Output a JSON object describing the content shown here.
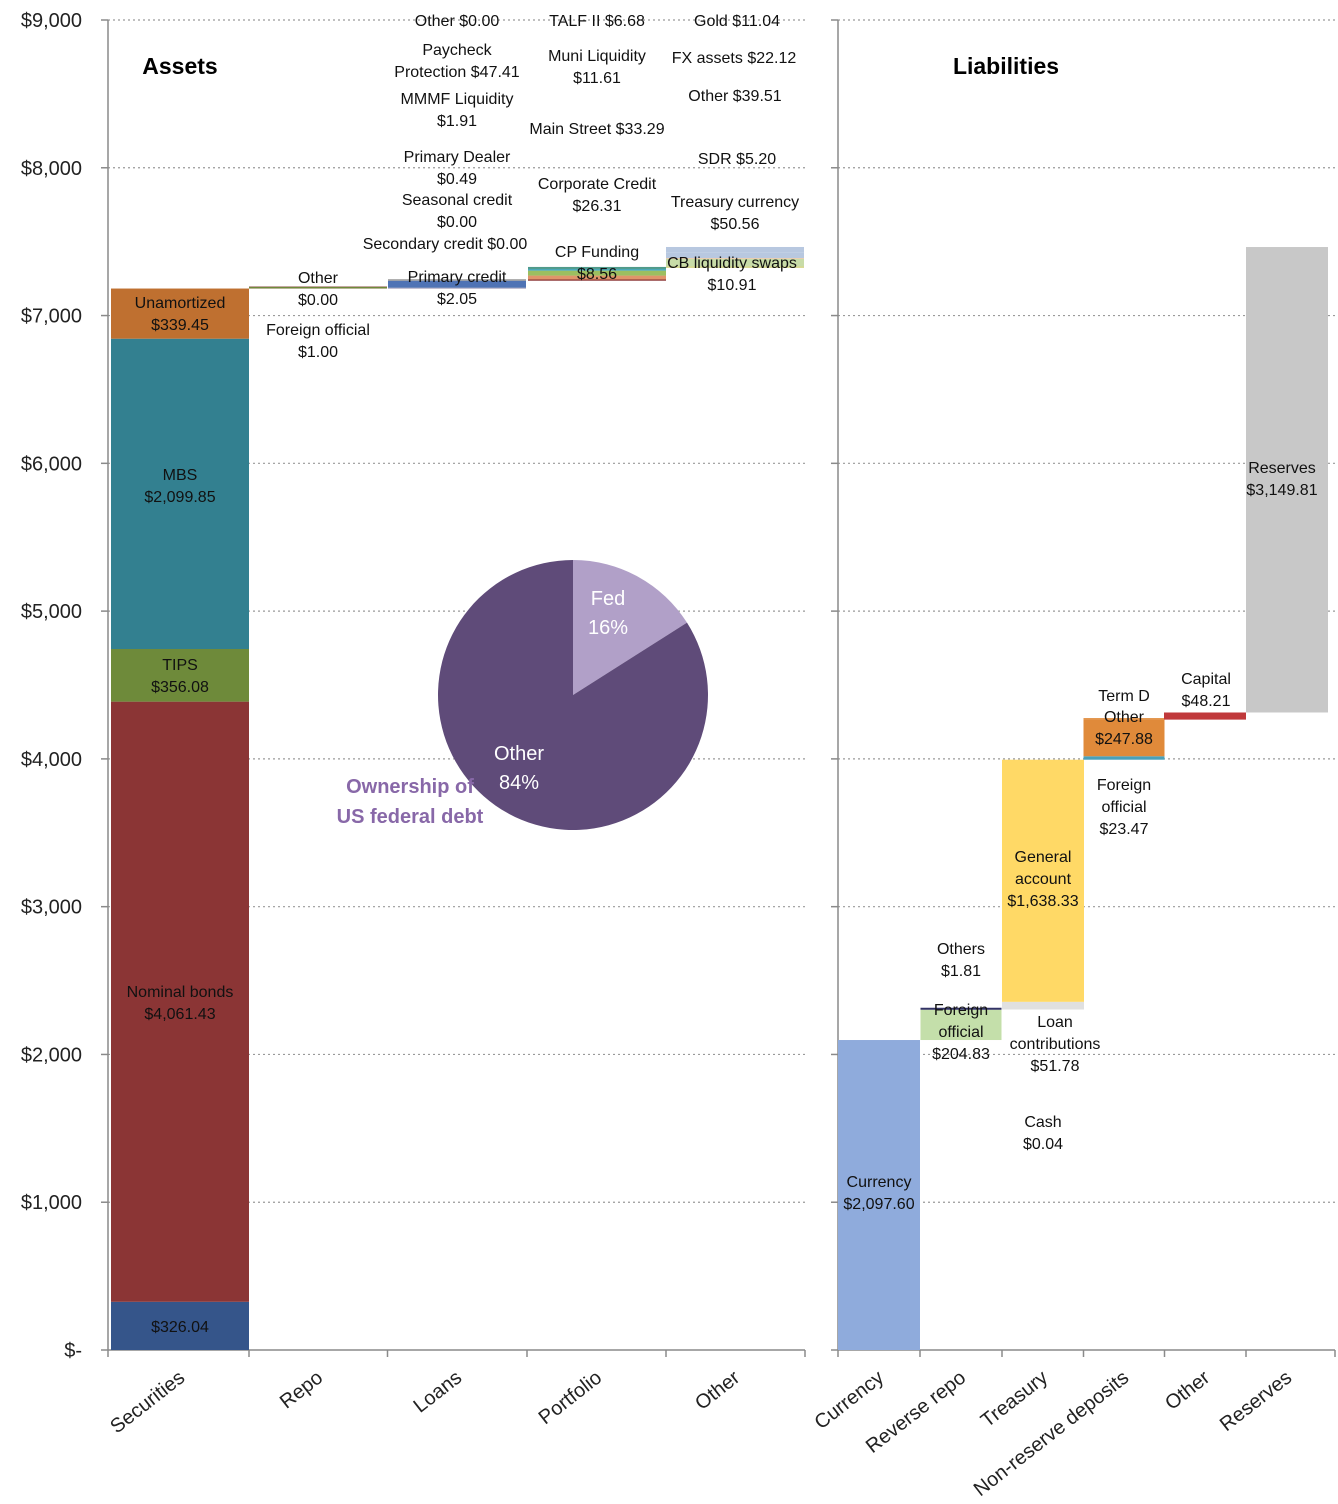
{
  "chart_data": [
    {
      "type": "bar",
      "title": "Assets",
      "ylim": [
        0,
        9000
      ],
      "yticks": [
        0,
        1000,
        2000,
        3000,
        4000,
        5000,
        6000,
        7000,
        8000,
        9000
      ],
      "ytick_labels": [
        "$-",
        "$1,000",
        "$2,000",
        "$3,000",
        "$4,000",
        "$5,000",
        "$6,000",
        "$7,000",
        "$8,000",
        "$9,000"
      ],
      "grid": true,
      "categories": [
        "Securities",
        "Repo",
        "Loans",
        "Portfolio",
        "Other"
      ],
      "segments": [
        {
          "category": "Securities",
          "base": 0,
          "value": 326.04,
          "color": "#35558a",
          "label": "$326.04"
        },
        {
          "category": "Securities",
          "base": 326.04,
          "value": 4061.43,
          "color": "#8b3535",
          "label": "Nominal bonds\n$4,061.43"
        },
        {
          "category": "Securities",
          "base": 4387.47,
          "value": 356.08,
          "color": "#6e8a3a",
          "label": "TIPS\n$356.08"
        },
        {
          "category": "Securities",
          "base": 4743.55,
          "value": 2099.85,
          "color": "#338090",
          "label": "MBS\n$2,099.85"
        },
        {
          "category": "Securities",
          "base": 6843.4,
          "value": 339.45,
          "color": "#bf7030",
          "label": "Unamortized\n$339.45"
        },
        {
          "category": "Repo",
          "base": 7182.85,
          "value": 1.0,
          "color": "#8b3535",
          "label": "Foreign official\n$1.00"
        },
        {
          "category": "Repo",
          "base": 7183.85,
          "value": 0.0,
          "color": "#6e8a3a",
          "label": "Other\n$0.00"
        },
        {
          "category": "Loans",
          "base": 7183.85,
          "value": 2.05,
          "color": "#5b4f95",
          "label": "Primary credit\n$2.05"
        },
        {
          "category": "Loans",
          "base": 7185.9,
          "value": 0.0,
          "color": "#9a9a9a",
          "label": "Secondary credit $0.00"
        },
        {
          "category": "Loans",
          "base": 7185.9,
          "value": 0.0,
          "color": "#9a9a9a",
          "label": "Seasonal credit\n$0.00"
        },
        {
          "category": "Loans",
          "base": 7185.9,
          "value": 0.49,
          "color": "#7d5a9a",
          "label": "Primary Dealer\n$0.49"
        },
        {
          "category": "Loans",
          "base": 7186.39,
          "value": 1.91,
          "color": "#c8c8c8",
          "label": "MMMF Liquidity\n$1.91"
        },
        {
          "category": "Loans",
          "base": 7188.3,
          "value": 47.41,
          "color": "#4f73b5",
          "label": "Paycheck\nProtection $47.41"
        },
        {
          "category": "Loans",
          "base": 7235.71,
          "value": 0.0,
          "color": "#9a9a9a",
          "label": "Other $0.00"
        },
        {
          "category": "Portfolio",
          "base": 7235.71,
          "value": 8.56,
          "color": "#8b3535",
          "label": "CP Funding\n$8.56"
        },
        {
          "category": "Portfolio",
          "base": 7244.27,
          "value": 26.31,
          "color": "#e0956a",
          "label": "Corporate Credit\n$26.31"
        },
        {
          "category": "Portfolio",
          "base": 7270.58,
          "value": 33.29,
          "color": "#9cbf60",
          "label": "Main Street $33.29"
        },
        {
          "category": "Portfolio",
          "base": 7303.87,
          "value": 11.61,
          "color": "#4aa8b8",
          "label": "Muni Liquidity\n$11.61"
        },
        {
          "category": "Portfolio",
          "base": 7315.48,
          "value": 6.68,
          "color": "#4f9a8a",
          "label": "TALF II $6.68"
        },
        {
          "category": "Other",
          "base": 7322.16,
          "value": 10.91,
          "color": "#d8d890",
          "label": "CB liquidity swaps\n$10.91"
        },
        {
          "category": "Other",
          "base": 7333.07,
          "value": 50.56,
          "color": "#c8dca8",
          "label": "Treasury currency\n$50.56"
        },
        {
          "category": "Other",
          "base": 7383.63,
          "value": 5.2,
          "color": "#f0c8a0",
          "label": "SDR $5.20"
        },
        {
          "category": "Other",
          "base": 7388.83,
          "value": 39.51,
          "color": "#b8c8e0",
          "label": "Other $39.51"
        },
        {
          "category": "Other",
          "base": 7428.34,
          "value": 22.12,
          "color": "#b8c8e0",
          "label": "FX assets $22.12"
        },
        {
          "category": "Other",
          "base": 7450.46,
          "value": 11.04,
          "color": "#b8c8e0",
          "label": "Gold $11.04"
        }
      ]
    },
    {
      "type": "bar",
      "title": "Liabilities",
      "ylim": [
        0,
        9000
      ],
      "grid": true,
      "categories": [
        "Currency",
        "Reverse repo",
        "Treasury",
        "Non-reserve deposits",
        "Other",
        "Reserves"
      ],
      "segments": [
        {
          "category": "Currency",
          "base": 0,
          "value": 2097.6,
          "color": "#8fabdc",
          "label": "Currency\n$2,097.60"
        },
        {
          "category": "Reverse repo",
          "base": 2097.6,
          "value": 204.83,
          "color": "#c4dfaa",
          "label": "Foreign\nofficial\n$204.83"
        },
        {
          "category": "Reverse repo",
          "base": 2302.43,
          "value": 1.81,
          "color": "#333366",
          "label": "Others\n$1.81"
        },
        {
          "category": "Treasury",
          "base": 2304.24,
          "value": 0.04,
          "color": "#c8c8c8",
          "label": "Cash\n$0.04"
        },
        {
          "category": "Treasury",
          "base": 2304.28,
          "value": 51.78,
          "color": "#e0e0e0",
          "label": "Loan\ncontributions\n$51.78"
        },
        {
          "category": "Treasury",
          "base": 2356.06,
          "value": 1638.33,
          "color": "#ffd966",
          "label": "General\naccount\n$1,638.33"
        },
        {
          "category": "Non-reserve deposits",
          "base": 3994.39,
          "value": 23.47,
          "color": "#4aa0b8",
          "label": "Foreign\nofficial\n$23.47"
        },
        {
          "category": "Non-reserve deposits",
          "base": 4017.86,
          "value": 247.88,
          "color": "#e08a3a",
          "label": "Other\n$247.88"
        },
        {
          "category": "Non-reserve deposits",
          "base": 4265.74,
          "value": 0,
          "color": "#e08a3a",
          "label": "Term D"
        },
        {
          "category": "Other",
          "base": 4265.74,
          "value": 48.21,
          "color": "#c0393b",
          "label": "Capital\n$48.21"
        },
        {
          "category": "Reserves",
          "base": 4313.95,
          "value": 3149.81,
          "color": "#c8c8c8",
          "label": "Reserves\n$3,149.81"
        }
      ]
    },
    {
      "type": "pie",
      "title": "Ownership of\nUS federal debt",
      "slices": [
        {
          "label": "Fed",
          "value": 16,
          "pct": "16%",
          "color": "#b1a0c8"
        },
        {
          "label": "Other",
          "value": 84,
          "pct": "84%",
          "color": "#5f4b79"
        }
      ]
    }
  ]
}
